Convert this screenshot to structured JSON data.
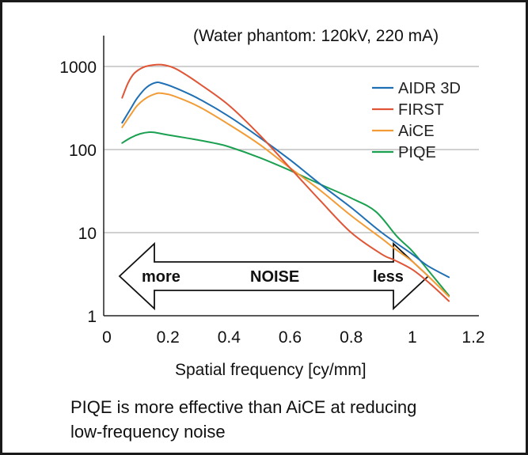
{
  "chart_data": {
    "type": "line",
    "title": "",
    "annotation": "(Water phantom: 120kV, 220 mA)",
    "xlabel": "Spatial frequency [cy/mm]",
    "ylabel": "",
    "xlim": [
      0,
      1.2
    ],
    "ylim": [
      1,
      1500
    ],
    "y_scale": "log",
    "x_ticks": [
      "0",
      "0.2",
      "0.4",
      "0.6",
      "0.8",
      "1",
      "1.2"
    ],
    "x_tick_values": [
      0,
      0.2,
      0.4,
      0.6,
      0.8,
      1.0,
      1.2
    ],
    "y_ticks": [
      "1",
      "10",
      "100",
      "1000"
    ],
    "y_tick_values": [
      1,
      10,
      100,
      1000
    ],
    "grid": "horizontal",
    "legend_position": "top-right",
    "noise_arrow": {
      "left_label": "more",
      "center_label": "NOISE",
      "right_label": "less"
    },
    "series": [
      {
        "name": "AIDR 3D",
        "color": "#1f6fb4",
        "x": [
          0.05,
          0.08,
          0.1,
          0.13,
          0.16,
          0.18,
          0.22,
          0.3,
          0.4,
          0.5,
          0.6,
          0.7,
          0.8,
          0.9,
          1.0,
          1.05,
          1.12
        ],
        "y": [
          210,
          320,
          420,
          560,
          640,
          630,
          560,
          410,
          250,
          140,
          75,
          38,
          20,
          10,
          5.5,
          4.0,
          2.9
        ]
      },
      {
        "name": "FIRST",
        "color": "#e05535",
        "x": [
          0.05,
          0.07,
          0.09,
          0.12,
          0.15,
          0.18,
          0.22,
          0.26,
          0.3,
          0.4,
          0.5,
          0.6,
          0.7,
          0.8,
          0.9,
          0.94,
          1.0,
          1.06,
          1.12
        ],
        "y": [
          420,
          640,
          830,
          980,
          1040,
          1050,
          960,
          790,
          630,
          340,
          150,
          60,
          24,
          10,
          5.5,
          4.7,
          3.6,
          2.4,
          1.5
        ]
      },
      {
        "name": "AiCE",
        "color": "#f39c35",
        "x": [
          0.05,
          0.08,
          0.1,
          0.13,
          0.16,
          0.18,
          0.22,
          0.3,
          0.4,
          0.5,
          0.6,
          0.7,
          0.8,
          0.9,
          0.94,
          1.0,
          1.06,
          1.12
        ],
        "y": [
          185,
          270,
          340,
          420,
          470,
          475,
          440,
          330,
          200,
          115,
          60,
          32,
          16,
          8.5,
          6.5,
          4.5,
          2.8,
          1.7
        ]
      },
      {
        "name": "PIQE",
        "color": "#1aa050",
        "x": [
          0.05,
          0.08,
          0.11,
          0.14,
          0.16,
          0.2,
          0.25,
          0.3,
          0.35,
          0.4,
          0.5,
          0.6,
          0.7,
          0.8,
          0.88,
          0.95,
          1.0,
          1.05,
          1.12
        ],
        "y": [
          120,
          140,
          155,
          162,
          160,
          150,
          140,
          130,
          120,
          108,
          80,
          56,
          38,
          26,
          18,
          9.0,
          6.0,
          3.6,
          1.75
        ]
      }
    ]
  },
  "caption": {
    "line1": "PIQE is more effective than AiCE at reducing",
    "line2": "low-frequency noise"
  }
}
